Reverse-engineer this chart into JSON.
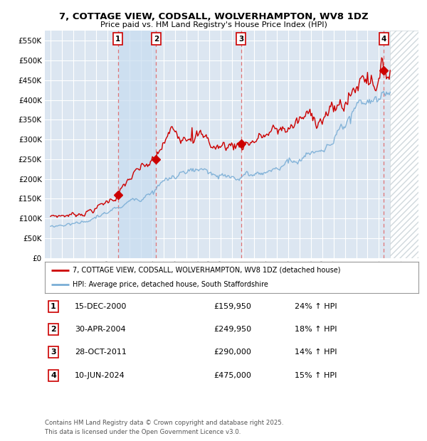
{
  "title_line1": "7, COTTAGE VIEW, CODSALL, WOLVERHAMPTON, WV8 1DZ",
  "title_line2": "Price paid vs. HM Land Registry's House Price Index (HPI)",
  "background_color": "#ffffff",
  "plot_bg_color": "#dce6f1",
  "grid_color": "#ffffff",
  "sale_dates_num": [
    2000.958,
    2004.328,
    2011.828,
    2024.442
  ],
  "sale_prices": [
    159950,
    249950,
    290000,
    475000
  ],
  "sale_labels": [
    "1",
    "2",
    "3",
    "4"
  ],
  "highlight_spans": [
    [
      2000.958,
      2004.328
    ]
  ],
  "legend_entries": [
    "7, COTTAGE VIEW, CODSALL, WOLVERHAMPTON, WV8 1DZ (detached house)",
    "HPI: Average price, detached house, South Staffordshire"
  ],
  "table_rows": [
    [
      "1",
      "15-DEC-2000",
      "£159,950",
      "24% ↑ HPI"
    ],
    [
      "2",
      "30-APR-2004",
      "£249,950",
      "18% ↑ HPI"
    ],
    [
      "3",
      "28-OCT-2011",
      "£290,000",
      "14% ↑ HPI"
    ],
    [
      "4",
      "10-JUN-2024",
      "£475,000",
      "15% ↑ HPI"
    ]
  ],
  "footer": "Contains HM Land Registry data © Crown copyright and database right 2025.\nThis data is licensed under the Open Government Licence v3.0.",
  "red_line_color": "#cc0000",
  "blue_line_color": "#7aaed6",
  "ylim": [
    0,
    575000
  ],
  "yticks": [
    0,
    50000,
    100000,
    150000,
    200000,
    250000,
    300000,
    350000,
    400000,
    450000,
    500000,
    550000
  ],
  "xlim_start": 1994.5,
  "xlim_end": 2027.5,
  "hatch_start": 2025.0
}
